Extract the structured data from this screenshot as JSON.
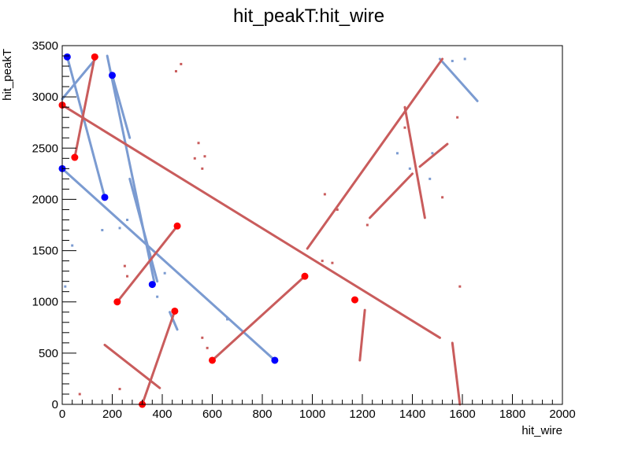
{
  "chart_data": {
    "type": "scatter",
    "title": "hit_peakT:hit_wire",
    "xlabel": "hit_wire",
    "ylabel": "hit_peakT",
    "xlim": [
      0,
      2000
    ],
    "ylim": [
      0,
      3500
    ],
    "x_ticks": [
      0,
      200,
      400,
      600,
      800,
      1000,
      1200,
      1400,
      1600,
      1800,
      2000
    ],
    "y_ticks": [
      0,
      500,
      1000,
      1500,
      2000,
      2500,
      3000,
      3500
    ],
    "x_tick_labels": [
      "0",
      "200",
      "400",
      "600",
      "800",
      "1000",
      "1200",
      "1400",
      "1600",
      "1800",
      "2000"
    ],
    "y_tick_labels": [
      "0",
      "500",
      "1000",
      "1500",
      "2000",
      "2500",
      "3000",
      "3500"
    ],
    "grid": false,
    "legend": "none",
    "colors": {
      "blue_hits": "#7b9bd1",
      "red_hits": "#c95c5c",
      "blue_markers": "#0000ff",
      "red_markers": "#ff0000"
    },
    "series": [
      {
        "color": "#7b9bd1",
        "tracks": [
          {
            "x": [
              0,
              850
            ],
            "y": [
              2300,
              430
            ]
          },
          {
            "x": [
              20,
              170
            ],
            "y": [
              3390,
              2020
            ]
          },
          {
            "x": [
              0,
              140
            ],
            "y": [
              2980,
              3390
            ]
          },
          {
            "x": [
              180,
              370
            ],
            "y": [
              3400,
              1170
            ]
          },
          {
            "x": [
              200,
              270
            ],
            "y": [
              3210,
              2600
            ]
          },
          {
            "x": [
              270,
              380
            ],
            "y": [
              2200,
              1200
            ]
          },
          {
            "x": [
              1510,
              1660
            ],
            "y": [
              3370,
              2960
            ]
          },
          {
            "x": [
              430,
              460
            ],
            "y": [
              900,
              730
            ]
          }
        ],
        "points": [
          {
            "x": 160,
            "y": 1700
          },
          {
            "x": 230,
            "y": 1720
          },
          {
            "x": 260,
            "y": 1800
          },
          {
            "x": 1560,
            "y": 3350
          },
          {
            "x": 1610,
            "y": 3370
          },
          {
            "x": 1480,
            "y": 2450
          },
          {
            "x": 1390,
            "y": 2300
          },
          {
            "x": 1340,
            "y": 2450
          },
          {
            "x": 660,
            "y": 830
          },
          {
            "x": 12,
            "y": 1150
          },
          {
            "x": 40,
            "y": 1550
          },
          {
            "x": 380,
            "y": 1050
          },
          {
            "x": 410,
            "y": 1280
          },
          {
            "x": 1470,
            "y": 2200
          }
        ]
      },
      {
        "color": "#c95c5c",
        "tracks": [
          {
            "x": 0,
            "y": 2920,
            "x2": 1510,
            "y2": 650
          },
          {
            "x": 50,
            "y": 2410,
            "x2": 130,
            "y2": 3390
          },
          {
            "x": 220,
            "y": 1000,
            "x2": 460,
            "y2": 1740
          },
          {
            "x": 600,
            "y": 430,
            "x2": 970,
            "y2": 1250
          },
          {
            "x": 980,
            "y": 1520,
            "x2": 1520,
            "y2": 3370
          },
          {
            "x": 1370,
            "y": 2900,
            "x2": 1450,
            "y2": 1820
          },
          {
            "x": 1230,
            "y": 1820,
            "x2": 1400,
            "y2": 2250
          },
          {
            "x": 1430,
            "y": 2320,
            "x2": 1540,
            "y2": 2540
          },
          {
            "x": 320,
            "y": 0,
            "x2": 450,
            "y2": 910
          },
          {
            "x": 170,
            "y": 580,
            "x2": 390,
            "y2": 160
          },
          {
            "x": 1210,
            "y": 920,
            "x2": 1190,
            "y2": 430
          },
          {
            "x": 1560,
            "y": 600,
            "x2": 1590,
            "y2": 0
          }
        ],
        "points": [
          {
            "x": 475,
            "y": 3320
          },
          {
            "x": 545,
            "y": 2550
          },
          {
            "x": 570,
            "y": 2420
          },
          {
            "x": 530,
            "y": 2400
          },
          {
            "x": 560,
            "y": 2300
          },
          {
            "x": 455,
            "y": 3250
          },
          {
            "x": 1520,
            "y": 2020
          },
          {
            "x": 1580,
            "y": 2800
          },
          {
            "x": 1100,
            "y": 1900
          },
          {
            "x": 1050,
            "y": 2050
          },
          {
            "x": 1040,
            "y": 1400
          },
          {
            "x": 1080,
            "y": 1380
          },
          {
            "x": 1220,
            "y": 1750
          },
          {
            "x": 250,
            "y": 1350
          },
          {
            "x": 260,
            "y": 1250
          },
          {
            "x": 560,
            "y": 650
          },
          {
            "x": 580,
            "y": 550
          },
          {
            "x": 230,
            "y": 150
          },
          {
            "x": 70,
            "y": 100
          },
          {
            "x": 1590,
            "y": 1150
          },
          {
            "x": 1370,
            "y": 2700
          }
        ]
      }
    ],
    "markers": [
      {
        "color": "#0000ff",
        "x": [
          20,
          0,
          200,
          170,
          360,
          850
        ],
        "y": [
          3390,
          2300,
          3210,
          2020,
          1170,
          430
        ]
      },
      {
        "color": "#ff0000",
        "x": [
          0,
          50,
          130,
          220,
          460,
          450,
          320,
          600,
          970,
          1170
        ],
        "y": [
          2920,
          2410,
          3390,
          1000,
          1740,
          910,
          0,
          430,
          1250,
          1020
        ]
      }
    ]
  }
}
